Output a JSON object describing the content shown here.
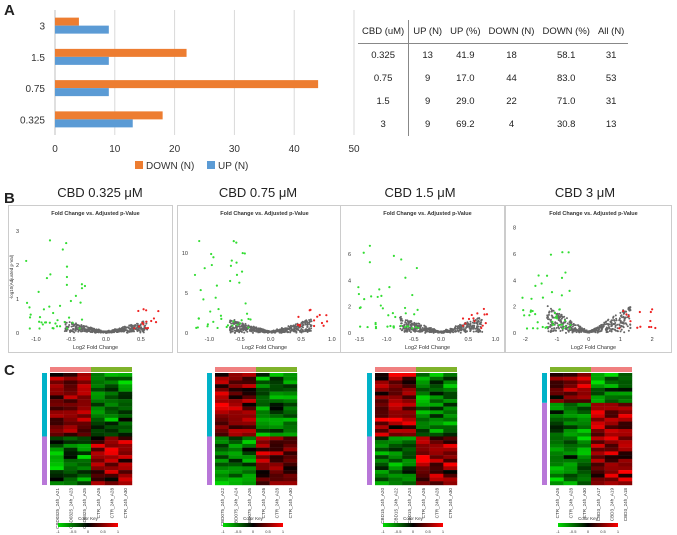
{
  "panels": {
    "a": "A",
    "b": "B",
    "c": "C"
  },
  "chart_data": [
    {
      "type": "bar",
      "orientation": "horizontal",
      "categories": [
        "3",
        "1.5",
        "0.75",
        "0.325"
      ],
      "series": [
        {
          "name": "DOWN (N)",
          "color": "#ED7D31",
          "values": [
            4,
            22,
            44,
            18
          ]
        },
        {
          "name": "UP (N)",
          "color": "#5B9BD5",
          "values": [
            9,
            9,
            9,
            13
          ]
        }
      ],
      "xticks": [
        "0",
        "10",
        "20",
        "30",
        "40",
        "50"
      ],
      "xlim": [
        0,
        50
      ],
      "grid": true,
      "legend": "bottom"
    },
    {
      "type": "table",
      "headers": [
        "CBD (uM)",
        "UP (N)",
        "UP (%)",
        "DOWN (N)",
        "DOWN (%)",
        "All (N)"
      ],
      "rows": [
        [
          "0.325",
          "13",
          "41.9",
          "18",
          "58.1",
          "31"
        ],
        [
          "0.75",
          "9",
          "17.0",
          "44",
          "83.0",
          "53"
        ],
        [
          "1.5",
          "9",
          "29.0",
          "22",
          "71.0",
          "31"
        ],
        [
          "3",
          "9",
          "69.2",
          "4",
          "30.8",
          "13"
        ]
      ]
    }
  ],
  "volcano": {
    "inner_title": "Fold Change vs. Adjusted p-Value",
    "xlabel": "Log2 Fold Change",
    "ylabel": "-log10(Adjusted p-Val)",
    "colors": {
      "up": "#ee2222",
      "down": "#33dd33",
      "ns": "#666666"
    },
    "plots": [
      {
        "title": "CBD 0.325 μM",
        "yticks": [
          "0",
          "1",
          "2",
          "3"
        ],
        "xticks": [
          "-1.0",
          "-0.5",
          "0.0",
          "0.5"
        ],
        "xlim": [
          -1.2,
          0.9
        ],
        "ylim": [
          0,
          3.3
        ]
      },
      {
        "title": "CBD 0.75 μM",
        "yticks": [
          "0",
          "5",
          "10"
        ],
        "xticks": [
          "-1.0",
          "-0.5",
          "0.0",
          "0.5",
          "1.0"
        ],
        "xlim": [
          -1.3,
          1.1
        ],
        "ylim": [
          0,
          14
        ]
      },
      {
        "title": "CBD 1.5 μM",
        "yticks": [
          "0",
          "2",
          "4",
          "6"
        ],
        "xticks": [
          "-1.5",
          "-1.0",
          "-0.5",
          "0.0",
          "0.5",
          "1.0"
        ],
        "xlim": [
          -1.6,
          1.1
        ],
        "ylim": [
          0,
          8.5
        ]
      },
      {
        "title": "CBD 3 μM",
        "yticks": [
          "0",
          "2",
          "4",
          "6",
          "8"
        ],
        "xticks": [
          "-2",
          "-1",
          "0",
          "1",
          "2"
        ],
        "xlim": [
          -2.2,
          2.5
        ],
        "ylim": [
          0,
          8.5
        ]
      }
    ]
  },
  "heatmaps": {
    "key_title": "Color Key",
    "key_ticks": [
      "-1",
      "-0.5",
      "0",
      "0.5",
      "1"
    ],
    "colors": {
      "low": "#00dd00",
      "mid": "#000000",
      "high": "#ff0000",
      "group_a": "#f08080",
      "group_b": "#7fb32b",
      "row_a": "#00b2c8",
      "row_b": "#b877d8"
    },
    "maps": [
      {
        "columns": [
          "CBD0325_24h_A21",
          "CBD0325_24h_A23",
          "CBD0325_24h_A25",
          "CTR_24h_A26",
          "CTR_24h_A28",
          "CTR_24h_A30"
        ]
      },
      {
        "columns": [
          "CBD075_24h_A22",
          "CBD075_24h_A24",
          "CBD075_24h_A26",
          "CTR_24h_A26",
          "CTR_24h_A28",
          "CTR_24h_A30"
        ]
      },
      {
        "columns": [
          "CBD15_24h_A20",
          "CBD15_24h_A22",
          "CBD15_24h_A24",
          "CTR_24h_A26",
          "CTR_24h_A28",
          "CTR_24h_A30"
        ]
      },
      {
        "columns": [
          "CTR_24h_A26",
          "CTR_24h_A28",
          "CTR_24h_A30",
          "CBD3_24h_A17",
          "CBD3_24h_A19",
          "CBD3_24h_A18"
        ]
      }
    ]
  }
}
